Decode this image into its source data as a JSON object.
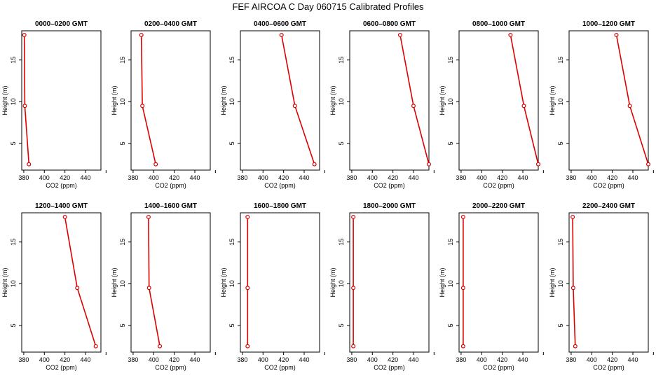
{
  "figure": {
    "title": "FEF AIRCOA C  Day 060715  Calibrated Profiles"
  },
  "colors": {
    "profile": "#dd0000",
    "axis": "#000000"
  },
  "chart_data": [
    {
      "type": "line",
      "title": "0000–0200 GMT",
      "xlabel": "CO2 (ppm)",
      "ylabel": "Height (m)",
      "xlim": [
        378,
        455
      ],
      "ylim": [
        1.8,
        18.5
      ],
      "xticks": [
        "380",
        "400",
        "420",
        "440"
      ],
      "yticks": [
        "5",
        "10",
        "15"
      ],
      "x": [
        380.5,
        381.0,
        385.0
      ],
      "y": [
        18.0,
        9.5,
        2.5
      ]
    },
    {
      "type": "line",
      "title": "0200–0400 GMT",
      "xlabel": "CO2 (ppm)",
      "ylabel": "Height (m)",
      "xlim": [
        378,
        455
      ],
      "ylim": [
        1.8,
        18.5
      ],
      "xticks": [
        "380",
        "400",
        "420",
        "440"
      ],
      "yticks": [
        "5",
        "10",
        "15"
      ],
      "x": [
        388.0,
        389.0,
        402.0
      ],
      "y": [
        18.0,
        9.5,
        2.5
      ]
    },
    {
      "type": "line",
      "title": "0400–0600 GMT",
      "xlabel": "CO2 (ppm)",
      "ylabel": "Height (m)",
      "xlim": [
        378,
        455
      ],
      "ylim": [
        1.8,
        18.5
      ],
      "xticks": [
        "380",
        "400",
        "420",
        "440"
      ],
      "yticks": [
        "5",
        "10",
        "15"
      ],
      "x": [
        418.0,
        431.0,
        450.0
      ],
      "y": [
        18.0,
        9.5,
        2.5
      ]
    },
    {
      "type": "line",
      "title": "0600–0800 GMT",
      "xlabel": "CO2 (ppm)",
      "ylabel": "Height (m)",
      "xlim": [
        378,
        455
      ],
      "ylim": [
        1.8,
        18.5
      ],
      "xticks": [
        "380",
        "400",
        "420",
        "440"
      ],
      "yticks": [
        "5",
        "10",
        "15"
      ],
      "x": [
        427.0,
        440.0,
        455.0
      ],
      "y": [
        18.0,
        9.5,
        2.5
      ]
    },
    {
      "type": "line",
      "title": "0800–1000 GMT",
      "xlabel": "CO2 (ppm)",
      "ylabel": "Height (m)",
      "xlim": [
        378,
        455
      ],
      "ylim": [
        1.8,
        18.5
      ],
      "xticks": [
        "380",
        "400",
        "420",
        "440"
      ],
      "yticks": [
        "5",
        "10",
        "15"
      ],
      "x": [
        428.0,
        441.0,
        455.0
      ],
      "y": [
        18.0,
        9.5,
        2.5
      ]
    },
    {
      "type": "line",
      "title": "1000–1200 GMT",
      "xlabel": "CO2 (ppm)",
      "ylabel": "Height (m)",
      "xlim": [
        378,
        455
      ],
      "ylim": [
        1.8,
        18.5
      ],
      "xticks": [
        "380",
        "400",
        "420",
        "440"
      ],
      "yticks": [
        "5",
        "10",
        "15"
      ],
      "x": [
        424.0,
        437.0,
        455.0
      ],
      "y": [
        18.0,
        9.5,
        2.5
      ]
    },
    {
      "type": "line",
      "title": "1200–1400 GMT",
      "xlabel": "CO2 (ppm)",
      "ylabel": "Height (m)",
      "xlim": [
        378,
        455
      ],
      "ylim": [
        1.8,
        18.5
      ],
      "xticks": [
        "380",
        "400",
        "420",
        "440"
      ],
      "yticks": [
        "5",
        "10",
        "15"
      ],
      "x": [
        420.0,
        432.0,
        450.0
      ],
      "y": [
        18.0,
        9.5,
        2.5
      ]
    },
    {
      "type": "line",
      "title": "1400–1600 GMT",
      "xlabel": "CO2 (ppm)",
      "ylabel": "Height (m)",
      "xlim": [
        378,
        455
      ],
      "ylim": [
        1.8,
        18.5
      ],
      "xticks": [
        "380",
        "400",
        "420",
        "440"
      ],
      "yticks": [
        "5",
        "10",
        "15"
      ],
      "x": [
        395.0,
        395.5,
        406.0
      ],
      "y": [
        18.0,
        9.5,
        2.5
      ]
    },
    {
      "type": "line",
      "title": "1600–1800 GMT",
      "xlabel": "CO2 (ppm)",
      "ylabel": "Height (m)",
      "xlim": [
        378,
        455
      ],
      "ylim": [
        1.8,
        18.5
      ],
      "xticks": [
        "380",
        "400",
        "420",
        "440"
      ],
      "yticks": [
        "5",
        "10",
        "15"
      ],
      "x": [
        385.0,
        385.0,
        385.0
      ],
      "y": [
        18.0,
        9.5,
        2.5
      ]
    },
    {
      "type": "line",
      "title": "1800–2000 GMT",
      "xlabel": "CO2 (ppm)",
      "ylabel": "Height (m)",
      "xlim": [
        378,
        455
      ],
      "ylim": [
        1.8,
        18.5
      ],
      "xticks": [
        "380",
        "400",
        "420",
        "440"
      ],
      "yticks": [
        "5",
        "10",
        "15"
      ],
      "x": [
        381.5,
        381.5,
        381.5
      ],
      "y": [
        18.0,
        9.5,
        2.5
      ]
    },
    {
      "type": "line",
      "title": "2000–2200 GMT",
      "xlabel": "CO2 (ppm)",
      "ylabel": "Height (m)",
      "xlim": [
        378,
        455
      ],
      "ylim": [
        1.8,
        18.5
      ],
      "xticks": [
        "380",
        "400",
        "420",
        "440"
      ],
      "yticks": [
        "5",
        "10",
        "15"
      ],
      "x": [
        382.0,
        382.0,
        382.0
      ],
      "y": [
        18.0,
        9.5,
        2.5
      ]
    },
    {
      "type": "line",
      "title": "2200–2400 GMT",
      "xlabel": "CO2 (ppm)",
      "ylabel": "Height (m)",
      "xlim": [
        378,
        455
      ],
      "ylim": [
        1.8,
        18.5
      ],
      "xticks": [
        "380",
        "400",
        "420",
        "440"
      ],
      "yticks": [
        "5",
        "10",
        "15"
      ],
      "x": [
        381.5,
        382.0,
        384.0
      ],
      "y": [
        18.0,
        9.5,
        2.5
      ]
    }
  ]
}
